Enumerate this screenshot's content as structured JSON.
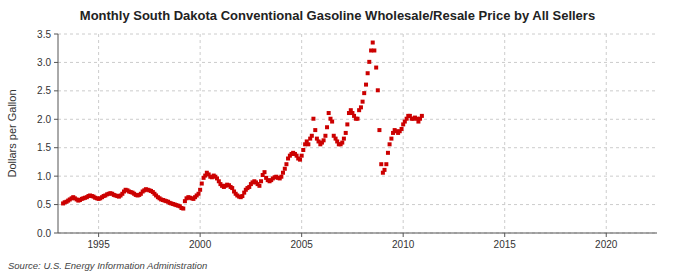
{
  "chart_data": {
    "type": "scatter",
    "title": "Monthly South Dakota Conventional Gasoline Wholesale/Resale Price by All Sellers",
    "ylabel": "Dollars per Gallon",
    "annotations": [
      "Source: U.S. Energy Information Administration"
    ],
    "color": "#cc0000",
    "marker": "square",
    "grid": true,
    "xlim": [
      1993.0,
      2022.5
    ],
    "ylim": [
      0.0,
      3.5
    ],
    "xticks": [
      1995,
      2000,
      2005,
      2010,
      2015,
      2020
    ],
    "yticks": [
      {
        "value": 0.0,
        "label": "0.0"
      },
      0.5,
      {
        "value": 1.0,
        "label": "1.0"
      },
      1.5,
      {
        "value": 2.0,
        "label": "2.0"
      },
      2.5,
      {
        "value": 3.0,
        "label": "3.0"
      },
      3.5
    ],
    "x": [
      1993.25,
      1993.33,
      1993.42,
      1993.5,
      1993.58,
      1993.67,
      1993.75,
      1993.83,
      1993.92,
      1994.0,
      1994.08,
      1994.17,
      1994.25,
      1994.33,
      1994.42,
      1994.5,
      1994.58,
      1994.67,
      1994.75,
      1994.83,
      1994.92,
      1995.0,
      1995.08,
      1995.17,
      1995.25,
      1995.33,
      1995.42,
      1995.5,
      1995.58,
      1995.67,
      1995.75,
      1995.83,
      1995.92,
      1996.0,
      1996.08,
      1996.17,
      1996.25,
      1996.33,
      1996.42,
      1996.5,
      1996.58,
      1996.67,
      1996.75,
      1996.83,
      1996.92,
      1997.0,
      1997.08,
      1997.17,
      1997.25,
      1997.33,
      1997.42,
      1997.5,
      1997.58,
      1997.67,
      1997.75,
      1997.83,
      1997.92,
      1998.0,
      1998.08,
      1998.17,
      1998.25,
      1998.33,
      1998.42,
      1998.5,
      1998.58,
      1998.67,
      1998.75,
      1998.83,
      1998.92,
      1999.0,
      1999.08,
      1999.17,
      1999.25,
      1999.33,
      1999.42,
      1999.5,
      1999.58,
      1999.67,
      1999.75,
      1999.83,
      1999.92,
      2000.0,
      2000.08,
      2000.17,
      2000.25,
      2000.33,
      2000.42,
      2000.5,
      2000.58,
      2000.67,
      2000.75,
      2000.83,
      2000.92,
      2001.0,
      2001.08,
      2001.17,
      2001.25,
      2001.33,
      2001.42,
      2001.5,
      2001.58,
      2001.67,
      2001.75,
      2001.83,
      2001.92,
      2002.0,
      2002.08,
      2002.17,
      2002.25,
      2002.33,
      2002.42,
      2002.5,
      2002.58,
      2002.67,
      2002.75,
      2002.83,
      2002.92,
      2003.0,
      2003.08,
      2003.17,
      2003.25,
      2003.33,
      2003.42,
      2003.5,
      2003.58,
      2003.67,
      2003.75,
      2003.83,
      2003.92,
      2004.0,
      2004.08,
      2004.17,
      2004.25,
      2004.33,
      2004.42,
      2004.5,
      2004.58,
      2004.67,
      2004.75,
      2004.83,
      2004.92,
      2005.0,
      2005.08,
      2005.17,
      2005.25,
      2005.33,
      2005.42,
      2005.5,
      2005.58,
      2005.67,
      2005.75,
      2005.83,
      2005.92,
      2006.0,
      2006.08,
      2006.17,
      2006.25,
      2006.33,
      2006.42,
      2006.5,
      2006.58,
      2006.67,
      2006.75,
      2006.83,
      2006.92,
      2007.0,
      2007.08,
      2007.17,
      2007.25,
      2007.33,
      2007.42,
      2007.5,
      2007.58,
      2007.67,
      2007.75,
      2007.83,
      2007.92,
      2008.0,
      2008.08,
      2008.17,
      2008.25,
      2008.33,
      2008.42,
      2008.5,
      2008.58,
      2008.67,
      2008.75,
      2008.83,
      2008.92,
      2009.0,
      2009.08,
      2009.17,
      2009.25,
      2009.33,
      2009.42,
      2009.5,
      2009.58,
      2009.67,
      2009.75,
      2009.83,
      2009.92,
      2010.0,
      2010.08,
      2010.17,
      2010.25,
      2010.33,
      2010.42,
      2010.5,
      2010.58,
      2010.67,
      2010.75,
      2010.83,
      2010.92
    ],
    "values": [
      0.52,
      0.54,
      0.55,
      0.57,
      0.59,
      0.61,
      0.63,
      0.61,
      0.59,
      0.57,
      0.58,
      0.6,
      0.61,
      0.62,
      0.63,
      0.65,
      0.66,
      0.65,
      0.64,
      0.62,
      0.61,
      0.6,
      0.61,
      0.63,
      0.65,
      0.66,
      0.68,
      0.69,
      0.7,
      0.69,
      0.67,
      0.66,
      0.65,
      0.64,
      0.66,
      0.69,
      0.73,
      0.76,
      0.75,
      0.73,
      0.72,
      0.71,
      0.69,
      0.67,
      0.66,
      0.67,
      0.69,
      0.73,
      0.75,
      0.77,
      0.76,
      0.75,
      0.74,
      0.72,
      0.69,
      0.66,
      0.63,
      0.61,
      0.59,
      0.58,
      0.57,
      0.56,
      0.55,
      0.53,
      0.52,
      0.51,
      0.5,
      0.49,
      0.48,
      0.47,
      0.44,
      0.43,
      0.56,
      0.61,
      0.63,
      0.62,
      0.61,
      0.6,
      0.63,
      0.66,
      0.69,
      0.76,
      0.87,
      0.97,
      1.01,
      1.06,
      1.03,
      0.99,
      0.98,
      1.01,
      0.99,
      0.96,
      0.91,
      0.86,
      0.83,
      0.81,
      0.83,
      0.85,
      0.84,
      0.81,
      0.79,
      0.73,
      0.69,
      0.66,
      0.64,
      0.63,
      0.65,
      0.71,
      0.76,
      0.79,
      0.81,
      0.86,
      0.89,
      0.91,
      0.89,
      0.86,
      0.83,
      0.91,
      1.02,
      1.07,
      0.97,
      0.93,
      0.91,
      0.93,
      0.96,
      0.98,
      0.99,
      0.97,
      0.96,
      0.99,
      1.06,
      1.13,
      1.21,
      1.31,
      1.36,
      1.39,
      1.41,
      1.39,
      1.36,
      1.31,
      1.29,
      1.36,
      1.46,
      1.56,
      1.61,
      1.56,
      1.66,
      1.71,
      2.01,
      1.81,
      1.66,
      1.61,
      1.56,
      1.59,
      1.63,
      1.71,
      1.86,
      2.11,
      2.01,
      1.96,
      1.71,
      1.66,
      1.61,
      1.56,
      1.56,
      1.59,
      1.66,
      1.76,
      1.91,
      2.11,
      2.16,
      2.11,
      2.06,
      2.01,
      2.01,
      2.16,
      2.21,
      2.31,
      2.46,
      2.61,
      2.81,
      3.01,
      3.21,
      3.35,
      3.21,
      2.91,
      2.51,
      1.81,
      1.21,
      1.06,
      1.11,
      1.21,
      1.41,
      1.56,
      1.66,
      1.76,
      1.81,
      1.79,
      1.76,
      1.79,
      1.83,
      1.91,
      1.96,
      2.01,
      2.06,
      2.06,
      2.01,
      2.01,
      2.03,
      2.01,
      1.96,
      2.01,
      2.06
    ]
  }
}
